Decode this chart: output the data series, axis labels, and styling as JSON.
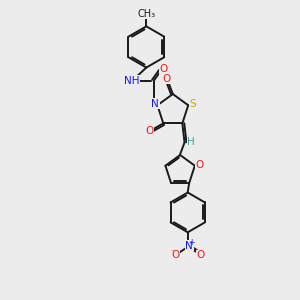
{
  "bg_color": "#ececec",
  "bond_color": "#1a1a1a",
  "atom_colors": {
    "N": "#1414ff",
    "O": "#ff1414",
    "S": "#ccaa00",
    "H": "#40a0a0",
    "C": "#1a1a1a"
  },
  "font_size": 7.5,
  "lw": 1.4
}
